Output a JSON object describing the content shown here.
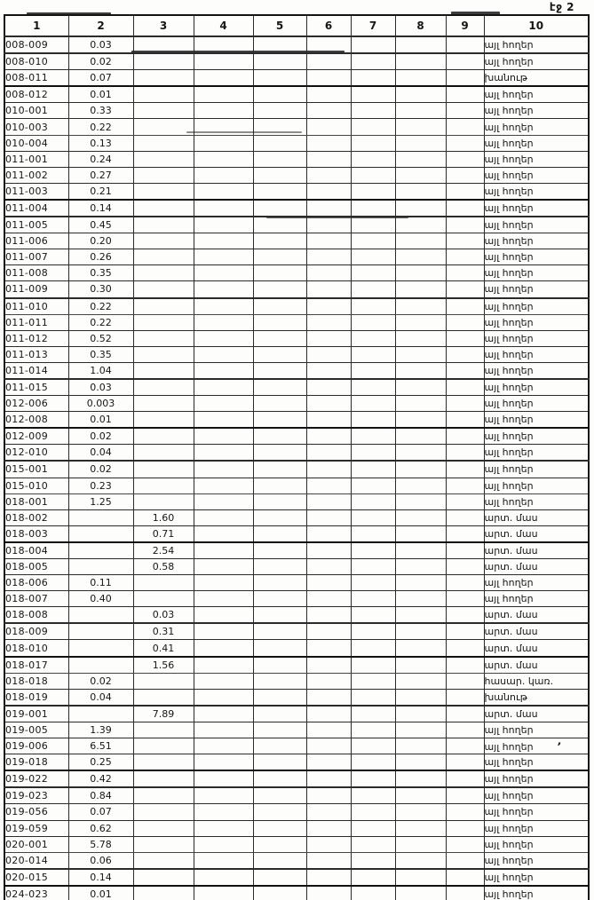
{
  "page": {
    "page_label": "էջ 2"
  },
  "table": {
    "columns": [
      "1",
      "2",
      "3",
      "4",
      "5",
      "6",
      "7",
      "8",
      "9",
      "10"
    ],
    "rows": [
      {
        "code": "008-009",
        "c2": "0.03",
        "c3": "",
        "c10": "այլ հողեր"
      },
      {
        "code": "008-010",
        "c2": "0.02",
        "c3": "",
        "c10": "այլ հողեր"
      },
      {
        "code": "008-011",
        "c2": "0.07",
        "c3": "",
        "c10": "խանութ"
      },
      {
        "code": "008-012",
        "c2": "0.01",
        "c3": "",
        "c10": "այլ հողեր"
      },
      {
        "code": "010-001",
        "c2": "0.33",
        "c3": "",
        "c10": "այլ հողեր"
      },
      {
        "code": "010-003",
        "c2": "0.22",
        "c3": "",
        "c10": "այլ հողեր"
      },
      {
        "code": "010-004",
        "c2": "0.13",
        "c3": "",
        "c10": "այլ հողեր"
      },
      {
        "code": "011-001",
        "c2": "0.24",
        "c3": "",
        "c10": "այլ հողեր"
      },
      {
        "code": "011-002",
        "c2": "0.27",
        "c3": "",
        "c10": "այլ հողեր"
      },
      {
        "code": "011-003",
        "c2": "0.21",
        "c3": "",
        "c10": "այլ հողեր"
      },
      {
        "code": "011-004",
        "c2": "0.14",
        "c3": "",
        "c10": "այլ հողեր"
      },
      {
        "code": "011-005",
        "c2": "0.45",
        "c3": "",
        "c10": "այլ հողեր"
      },
      {
        "code": "011-006",
        "c2": "0.20",
        "c3": "",
        "c10": "այլ հողեր"
      },
      {
        "code": "011-007",
        "c2": "0.26",
        "c3": "",
        "c10": "այլ հողեր"
      },
      {
        "code": "011-008",
        "c2": "0.35",
        "c3": "",
        "c10": "այլ հողեր"
      },
      {
        "code": "011-009",
        "c2": "0.30",
        "c3": "",
        "c10": "այլ հողեր"
      },
      {
        "code": "011-010",
        "c2": "0.22",
        "c3": "",
        "c10": "այլ հողեր"
      },
      {
        "code": "011-011",
        "c2": "0.22",
        "c3": "",
        "c10": "այլ հողեր"
      },
      {
        "code": "011-012",
        "c2": "0.52",
        "c3": "",
        "c10": "այլ հողեր"
      },
      {
        "code": "011-013",
        "c2": "0.35",
        "c3": "",
        "c10": "այլ հողեր"
      },
      {
        "code": "011-014",
        "c2": "1.04",
        "c3": "",
        "c10": "այլ հողեր"
      },
      {
        "code": "011-015",
        "c2": "0.03",
        "c3": "",
        "c10": "այլ հողեր"
      },
      {
        "code": "012-006",
        "c2": "0.003",
        "c3": "",
        "c10": "այլ հողեր"
      },
      {
        "code": "012-008",
        "c2": "0.01",
        "c3": "",
        "c10": "այլ հողեր"
      },
      {
        "code": "012-009",
        "c2": "0.02",
        "c3": "",
        "c10": "այլ հողեր"
      },
      {
        "code": "012-010",
        "c2": "0.04",
        "c3": "",
        "c10": "այլ հողեր"
      },
      {
        "code": "015-001",
        "c2": "0.02",
        "c3": "",
        "c10": "այլ հողեր"
      },
      {
        "code": "015-010",
        "c2": "0.23",
        "c3": "",
        "c10": "այլ հողեր"
      },
      {
        "code": "018-001",
        "c2": "1.25",
        "c3": "",
        "c10": "այլ հողեր"
      },
      {
        "code": "018-002",
        "c2": "",
        "c3": "1.60",
        "c10": "արտ. մաս"
      },
      {
        "code": "018-003",
        "c2": "",
        "c3": "0.71",
        "c10": "արտ. մաս"
      },
      {
        "code": "018-004",
        "c2": "",
        "c3": "2.54",
        "c10": "արտ. մաս"
      },
      {
        "code": "018-005",
        "c2": "",
        "c3": "0.58",
        "c10": "արտ. մաս"
      },
      {
        "code": "018-006",
        "c2": "0.11",
        "c3": "",
        "c10": "այլ հողեր"
      },
      {
        "code": "018-007",
        "c2": "0.40",
        "c3": "",
        "c10": "այլ հողեր"
      },
      {
        "code": "018-008",
        "c2": "",
        "c3": "0.03",
        "c10": "արտ. մաս"
      },
      {
        "code": "018-009",
        "c2": "",
        "c3": "0.31",
        "c10": "արտ. մաս"
      },
      {
        "code": "018-010",
        "c2": "",
        "c3": "0.41",
        "c10": "արտ. մաս"
      },
      {
        "code": "018-017",
        "c2": "",
        "c3": "1.56",
        "c10": "արտ. մաս"
      },
      {
        "code": "018-018",
        "c2": "0.02",
        "c3": "",
        "c10": "հասար. կառ."
      },
      {
        "code": "018-019",
        "c2": "0.04",
        "c3": "",
        "c10": "խանութ"
      },
      {
        "code": "019-001",
        "c2": "",
        "c3": "7.89",
        "c10": "արտ. մաս"
      },
      {
        "code": "019-005",
        "c2": "1.39",
        "c3": "",
        "c10": "այլ հողեր"
      },
      {
        "code": "019-006",
        "c2": "6.51",
        "c3": "",
        "c10": "այլ հողեր"
      },
      {
        "code": "019-018",
        "c2": "0.25",
        "c3": "",
        "c10": "այլ հողեր"
      },
      {
        "code": "019-022",
        "c2": "0.42",
        "c3": "",
        "c10": "այլ հողեր"
      },
      {
        "code": "019-023",
        "c2": "0.84",
        "c3": "",
        "c10": "այլ հողեր"
      },
      {
        "code": "019-056",
        "c2": "0.07",
        "c3": "",
        "c10": "այլ հողեր"
      },
      {
        "code": "019-059",
        "c2": "0.62",
        "c3": "",
        "c10": "այլ հողեր"
      },
      {
        "code": "020-001",
        "c2": "5.78",
        "c3": "",
        "c10": "այլ հողեր"
      },
      {
        "code": "020-014",
        "c2": "0.06",
        "c3": "",
        "c10": "այլ հողեր"
      },
      {
        "code": "020-015",
        "c2": "0.14",
        "c3": "",
        "c10": "այլ հողեր"
      },
      {
        "code": "024-023",
        "c2": "0.01",
        "c3": "",
        "c10": "այլ հողեր"
      }
    ],
    "pen_mark": {
      "row_code": "019-006",
      "glyph": "ʼ"
    }
  }
}
